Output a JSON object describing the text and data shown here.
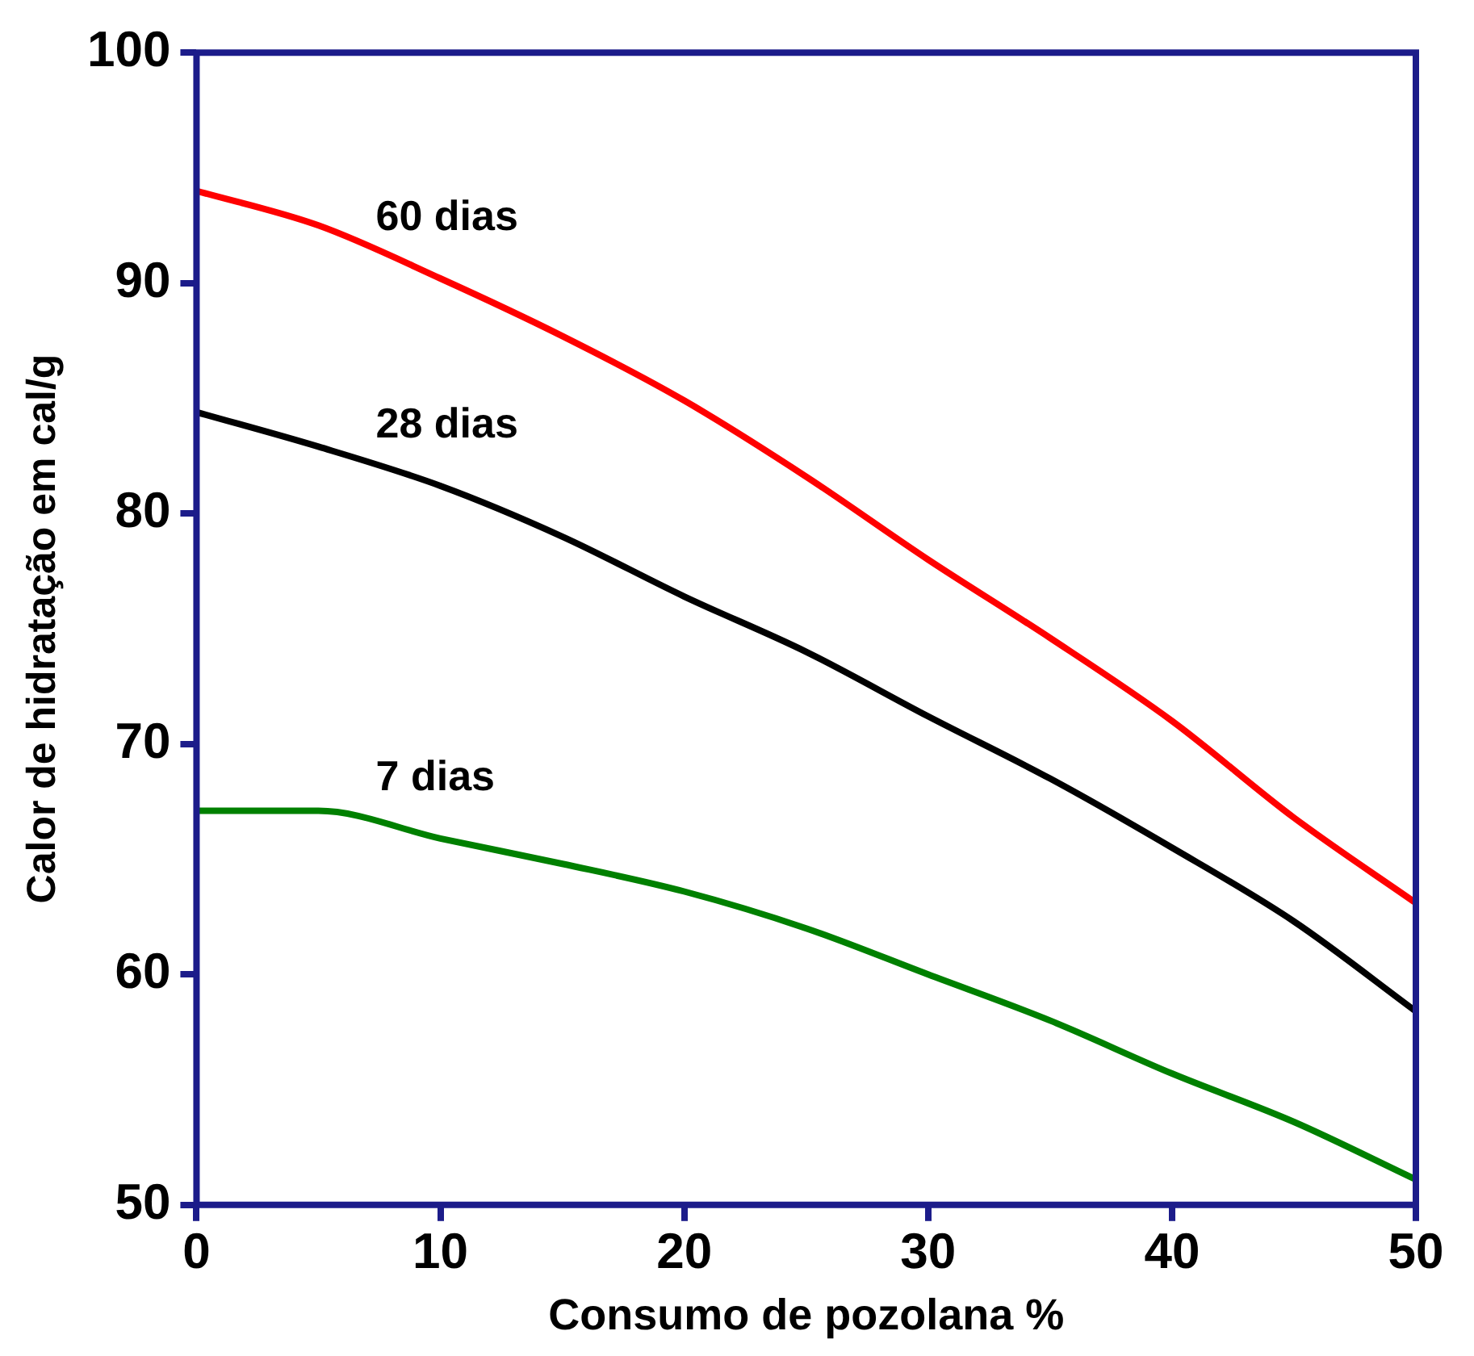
{
  "chart_data": {
    "type": "line",
    "xlabel": "Consumo de pozolana %",
    "ylabel": "Calor de hidratação em cal/g",
    "x": [
      0,
      5,
      10,
      15,
      20,
      25,
      30,
      35,
      40,
      45,
      50
    ],
    "series": [
      {
        "name": "60 dias",
        "color": "#ff0000",
        "values": [
          94,
          92.5,
          90.2,
          87.7,
          84.9,
          81.6,
          78,
          74.6,
          71,
          66.8,
          63.1
        ]
      },
      {
        "name": "28 dias",
        "color": "#000000",
        "values": [
          84.4,
          82.9,
          81.2,
          79,
          76.4,
          74,
          71.2,
          68.5,
          65.5,
          62.3,
          58.4
        ]
      },
      {
        "name": "7 dias",
        "color": "#008000",
        "values": [
          67.1,
          67.1,
          65.9,
          64.8,
          63.6,
          62,
          60,
          58,
          55.7,
          53.6,
          51.1
        ]
      }
    ],
    "xlim": [
      0,
      50
    ],
    "xticks": [
      0,
      10,
      20,
      30,
      40,
      50
    ],
    "ylim": [
      50,
      100
    ],
    "yticks": [
      50,
      60,
      70,
      80,
      90,
      100
    ],
    "grid": false,
    "legend": false,
    "marker": "none",
    "line_style": "solid"
  }
}
